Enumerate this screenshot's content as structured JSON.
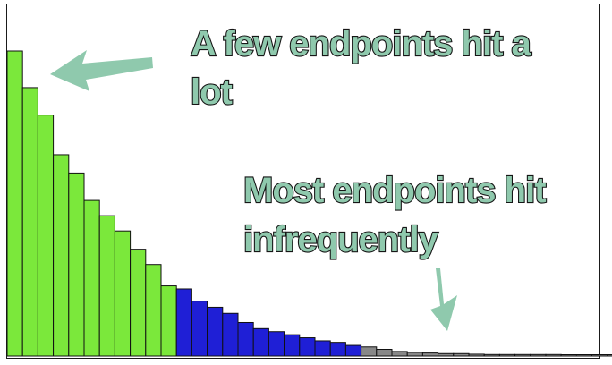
{
  "chart_data": {
    "type": "bar",
    "title": "",
    "xlabel": "",
    "ylabel": "",
    "ylim": [
      0,
      100
    ],
    "values": [
      100,
      88,
      79,
      66,
      60,
      51,
      46,
      41,
      35,
      30,
      23,
      22,
      18,
      16,
      14,
      11,
      9,
      8,
      7,
      6,
      5,
      4.5,
      3.5,
      3.0,
      2.2,
      1.5,
      1.2,
      1.0,
      0.8,
      0.8,
      0.6,
      0.5,
      0.5,
      0.5,
      0.5,
      0.5,
      0.4,
      0.4,
      0.4,
      0.4
    ],
    "colors": [
      "#7be83b",
      "#7be83b",
      "#7be83b",
      "#7be83b",
      "#7be83b",
      "#7be83b",
      "#7be83b",
      "#7be83b",
      "#7be83b",
      "#7be83b",
      "#7be83b",
      "#1f1fd6",
      "#1f1fd6",
      "#1f1fd6",
      "#1f1fd6",
      "#1f1fd6",
      "#1f1fd6",
      "#1f1fd6",
      "#1f1fd6",
      "#1f1fd6",
      "#1f1fd6",
      "#1f1fd6",
      "#1f1fd6",
      "#888888",
      "#888888",
      "#888888",
      "#888888",
      "#888888",
      "#888888",
      "#888888",
      "#888888",
      "#888888",
      "#888888",
      "#888888",
      "#888888",
      "#888888",
      "#888888",
      "#888888",
      "#888888",
      "#888888"
    ],
    "grid": false,
    "legend": "none",
    "annotations": [
      {
        "lines": [
          "A few endpoints hit a",
          "lot"
        ],
        "arrow": "left"
      },
      {
        "lines": [
          "Most endpoints hit",
          "infrequently"
        ],
        "arrow": "down"
      }
    ]
  },
  "colors": {
    "frequent": "#7be83b",
    "moderate": "#1f1fd6",
    "rare": "#888888",
    "callout_fill": "#8fc9ad",
    "callout_outline": "#161616",
    "arrow": "#8fc9ad"
  }
}
